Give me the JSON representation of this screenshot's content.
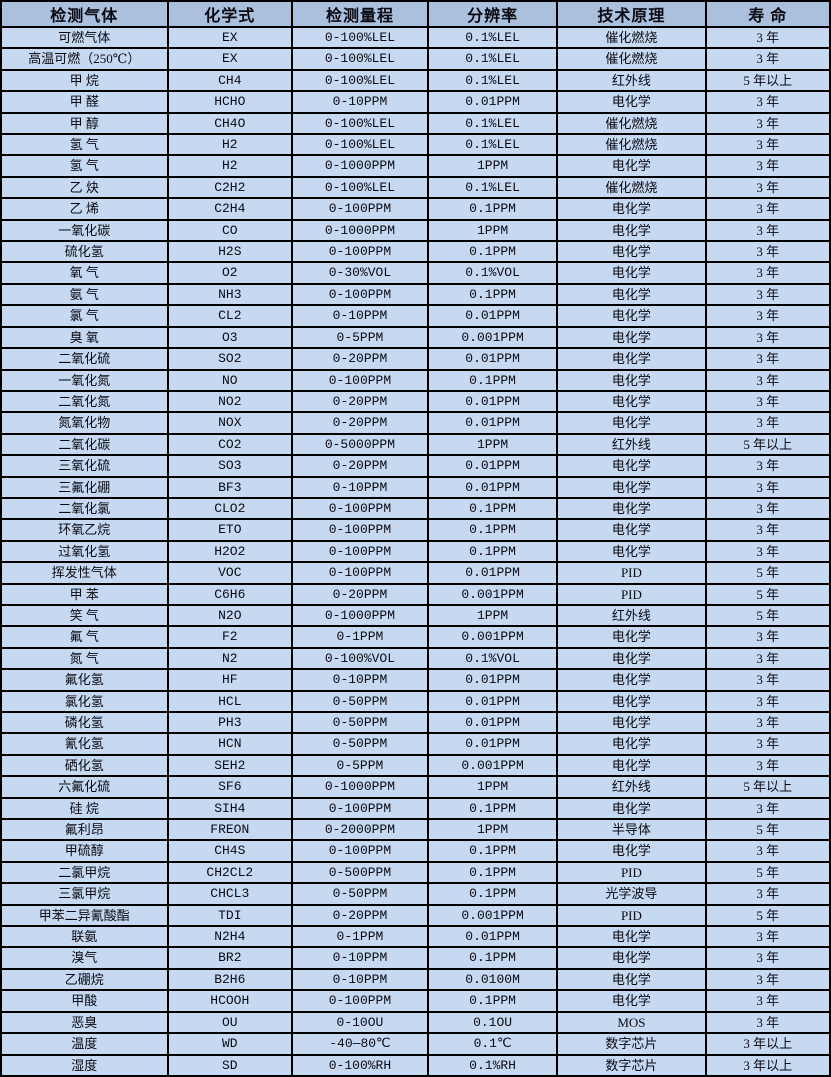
{
  "colors": {
    "header_bg": "#abc0dc",
    "row_bg": "#c6d9f1",
    "border": "#000000",
    "text": "#0a0a14"
  },
  "table": {
    "columns": [
      "检测气体",
      "化学式",
      "检测量程",
      "分辨率",
      "技术原理",
      "寿 命"
    ],
    "rows": [
      [
        "可燃气体",
        "EX",
        "0-100%LEL",
        "0.1%LEL",
        "催化燃烧",
        "3 年"
      ],
      [
        "高温可燃（250℃）",
        "EX",
        "0-100%LEL",
        "0.1%LEL",
        "催化燃烧",
        "3 年"
      ],
      [
        "甲 烷",
        "CH4",
        "0-100%LEL",
        "0.1%LEL",
        "红外线",
        "5 年以上"
      ],
      [
        "甲 醛",
        "HCHO",
        "0-10PPM",
        "0.01PPM",
        "电化学",
        "3 年"
      ],
      [
        "甲 醇",
        "CH4O",
        "0-100%LEL",
        "0.1%LEL",
        "催化燃烧",
        "3 年"
      ],
      [
        "氢 气",
        "H2",
        "0-100%LEL",
        "0.1%LEL",
        "催化燃烧",
        "3 年"
      ],
      [
        "氢 气",
        "H2",
        "0-1000PPM",
        "1PPM",
        "电化学",
        "3 年"
      ],
      [
        "乙 炔",
        "C2H2",
        "0-100%LEL",
        "0.1%LEL",
        "催化燃烧",
        "3 年"
      ],
      [
        "乙 烯",
        "C2H4",
        "0-100PPM",
        "0.1PPM",
        "电化学",
        "3 年"
      ],
      [
        "一氧化碳",
        "CO",
        "0-1000PPM",
        "1PPM",
        "电化学",
        "3 年"
      ],
      [
        "硫化氢",
        "H2S",
        "0-100PPM",
        "0.1PPM",
        "电化学",
        "3 年"
      ],
      [
        "氧 气",
        "O2",
        "0-30%VOL",
        "0.1%VOL",
        "电化学",
        "3 年"
      ],
      [
        "氨 气",
        "NH3",
        "0-100PPM",
        "0.1PPM",
        "电化学",
        "3 年"
      ],
      [
        "氯 气",
        "CL2",
        "0-10PPM",
        "0.01PPM",
        "电化学",
        "3 年"
      ],
      [
        "臭 氧",
        "O3",
        "0-5PPM",
        "0.001PPM",
        "电化学",
        "3 年"
      ],
      [
        "二氧化硫",
        "SO2",
        "0-20PPM",
        "0.01PPM",
        "电化学",
        "3 年"
      ],
      [
        "一氧化氮",
        "NO",
        "0-100PPM",
        "0.1PPM",
        "电化学",
        "3 年"
      ],
      [
        "二氧化氮",
        "NO2",
        "0-20PPM",
        "0.01PPM",
        "电化学",
        "3 年"
      ],
      [
        "氮氧化物",
        "NOX",
        "0-20PPM",
        "0.01PPM",
        "电化学",
        "3 年"
      ],
      [
        "二氧化碳",
        "CO2",
        "0-5000PPM",
        "1PPM",
        "红外线",
        "5 年以上"
      ],
      [
        "三氧化硫",
        "SO3",
        "0-20PPM",
        "0.01PPM",
        "电化学",
        "3 年"
      ],
      [
        "三氟化硼",
        "BF3",
        "0-10PPM",
        "0.01PPM",
        "电化学",
        "3 年"
      ],
      [
        "二氧化氯",
        "CLO2",
        "0-100PPM",
        "0.1PPM",
        "电化学",
        "3 年"
      ],
      [
        "环氧乙烷",
        "ETO",
        "0-100PPM",
        "0.1PPM",
        "电化学",
        "3 年"
      ],
      [
        "过氧化氢",
        "H2O2",
        "0-100PPM",
        "0.1PPM",
        "电化学",
        "3 年"
      ],
      [
        "挥发性气体",
        "VOC",
        "0-100PPM",
        "0.01PPM",
        "PID",
        "5 年"
      ],
      [
        "甲 苯",
        "C6H6",
        "0-20PPM",
        "0.001PPM",
        "PID",
        "5 年"
      ],
      [
        "笑 气",
        "N2O",
        "0-1000PPM",
        "1PPM",
        "红外线",
        "5 年"
      ],
      [
        "氟 气",
        "F2",
        "0-1PPM",
        "0.001PPM",
        "电化学",
        "3 年"
      ],
      [
        "氮 气",
        "N2",
        "0-100%VOL",
        "0.1%VOL",
        "电化学",
        "3 年"
      ],
      [
        "氟化氢",
        "HF",
        "0-10PPM",
        "0.01PPM",
        "电化学",
        "3 年"
      ],
      [
        "氯化氢",
        "HCL",
        "0-50PPM",
        "0.01PPM",
        "电化学",
        "3 年"
      ],
      [
        "磷化氢",
        "PH3",
        "0-50PPM",
        "0.01PPM",
        "电化学",
        "3 年"
      ],
      [
        "氰化氢",
        "HCN",
        "0-50PPM",
        "0.01PPM",
        "电化学",
        "3 年"
      ],
      [
        "硒化氢",
        "SEH2",
        "0-5PPM",
        "0.001PPM",
        "电化学",
        "3 年"
      ],
      [
        "六氟化硫",
        "SF6",
        "0-1000PPM",
        "1PPM",
        "红外线",
        "5 年以上"
      ],
      [
        "硅 烷",
        "SIH4",
        "0-100PPM",
        "0.1PPM",
        "电化学",
        "3 年"
      ],
      [
        "氟利昂",
        "FREON",
        "0-2000PPM",
        "1PPM",
        "半导体",
        "5 年"
      ],
      [
        "甲硫醇",
        "CH4S",
        "0-100PPM",
        "0.1PPM",
        "电化学",
        "3 年"
      ],
      [
        "二氯甲烷",
        "CH2CL2",
        "0-500PPM",
        "0.1PPM",
        "PID",
        "5 年"
      ],
      [
        "三氯甲烷",
        "CHCL3",
        "0-50PPM",
        "0.1PPM",
        "光学波导",
        "3 年"
      ],
      [
        "甲苯二异氰酸酯",
        "TDI",
        "0-20PPM",
        "0.001PPM",
        "PID",
        "5 年"
      ],
      [
        "联氨",
        "N2H4",
        "0-1PPM",
        "0.01PPM",
        "电化学",
        "3 年"
      ],
      [
        "溴气",
        "BR2",
        "0-10PPM",
        "0.1PPM",
        "电化学",
        "3 年"
      ],
      [
        "乙硼烷",
        "B2H6",
        "0-10PPM",
        "0.0100M",
        "电化学",
        "3 年"
      ],
      [
        "甲酸",
        "HCOOH",
        "0-100PPM",
        "0.1PPM",
        "电化学",
        "3 年"
      ],
      [
        "恶臭",
        "OU",
        "0-10OU",
        "0.1OU",
        "MOS",
        "3 年"
      ],
      [
        "温度",
        "WD",
        "-40—80℃",
        "0.1℃",
        "数字芯片",
        "3 年以上"
      ],
      [
        "湿度",
        "SD",
        "0-100%RH",
        "0.1%RH",
        "数字芯片",
        "3 年以上"
      ]
    ]
  }
}
